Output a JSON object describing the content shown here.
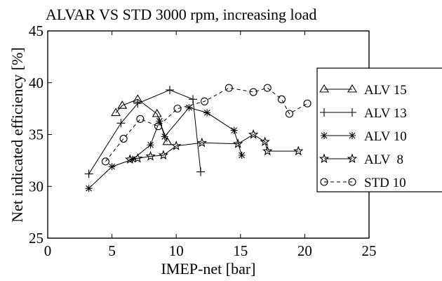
{
  "chart_data": {
    "type": "line",
    "title": "ALVAR VS STD   3000 rpm, increasing load",
    "xlabel": "IMEP-net  [bar]",
    "ylabel": "Net indicated efficiency [%]",
    "xlim": [
      0,
      25
    ],
    "ylim": [
      25,
      45
    ],
    "xticks": [
      "0",
      "5",
      "10",
      "15",
      "20",
      "25"
    ],
    "yticks": [
      "25",
      "30",
      "35",
      "40",
      "45"
    ],
    "grid": false,
    "legend_placement": "right",
    "series": [
      {
        "name": "ALV 15",
        "marker": "triangle",
        "dash": "solid",
        "x": [
          5.3,
          5.8,
          7.0,
          8.5,
          9.3
        ],
        "y": [
          37.1,
          37.8,
          38.4,
          37.0,
          34.3
        ]
      },
      {
        "name": "ALV 13",
        "marker": "plus",
        "dash": "solid",
        "x": [
          3.2,
          5.7,
          7.0,
          9.5,
          11.3,
          11.9
        ],
        "y": [
          31.2,
          36.1,
          38.0,
          39.3,
          38.4,
          31.4
        ]
      },
      {
        "name": "ALV 10",
        "marker": "asterisk",
        "dash": "solid",
        "x": [
          3.2,
          5.0,
          6.6,
          8.0,
          8.7,
          9.1,
          11.0,
          12.4,
          14.5,
          15.1
        ],
        "y": [
          29.8,
          31.9,
          32.6,
          34.0,
          36.3,
          34.8,
          37.6,
          37.1,
          35.4,
          33.0
        ],
        "order": "as listed"
      },
      {
        "name": "ALV  8",
        "marker": "star",
        "dash": "solid",
        "x": [
          6.4,
          7.0,
          8.0,
          9.0,
          10.0,
          12.0,
          14.8,
          16.0,
          16.9,
          17.1,
          19.5
        ],
        "y": [
          32.6,
          32.7,
          32.9,
          33.0,
          33.9,
          34.2,
          34.1,
          35.0,
          34.3,
          33.4,
          33.4
        ]
      },
      {
        "name": "STD 10",
        "marker": "circle",
        "dash": "dashed",
        "x": [
          4.5,
          5.9,
          7.2,
          8.6,
          10.1,
          12.2,
          14.1,
          16.0,
          17.1,
          18.2,
          18.8,
          20.2
        ],
        "y": [
          32.4,
          34.6,
          36.5,
          35.8,
          37.5,
          38.2,
          39.5,
          39.1,
          39.5,
          38.4,
          37.0,
          38.0
        ]
      }
    ]
  },
  "colors": {
    "line": "#000000",
    "background": "#ffffff"
  }
}
